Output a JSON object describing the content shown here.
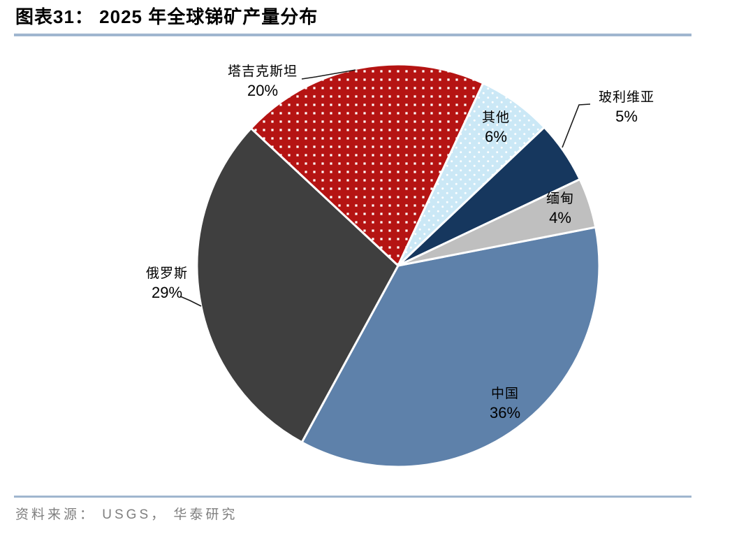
{
  "header": {
    "figure_label": "图表31：",
    "title": "图表31： 2025 年全球锑矿产量分布"
  },
  "footer": {
    "source": "资料来源： USGS， 华泰研究"
  },
  "colors": {
    "rule": "#a0b6cf",
    "source_text": "#7f7f7f",
    "slice_border": "#ffffff",
    "leader_line": "#1a1a1a",
    "pattern_dot": "#ffffff"
  },
  "chart_data": {
    "type": "pie",
    "title": "图表31： 2025 年全球锑矿产量分布",
    "source": "资料来源： USGS， 华泰研究",
    "unit": "%",
    "start_angle_deg": 79,
    "clockwise": true,
    "legend": "none (direct slice labels, some with leader lines)",
    "categories": [
      "中国",
      "俄罗斯",
      "塔吉克斯坦",
      "其他",
      "玻利维亚",
      "缅甸"
    ],
    "values": [
      36,
      29,
      20,
      6,
      5,
      4
    ],
    "slices": [
      {
        "name": "中国",
        "pct": "36%",
        "value": 36,
        "color": "#5e81aa",
        "pattern": "solid"
      },
      {
        "name": "俄罗斯",
        "pct": "29%",
        "value": 29,
        "color": "#3f3f3f",
        "pattern": "solid"
      },
      {
        "name": "塔吉克斯坦",
        "pct": "20%",
        "value": 20,
        "color": "#b51413",
        "pattern": "dots-square"
      },
      {
        "name": "其他",
        "pct": "6%",
        "value": 6,
        "color": "#cbe8f6",
        "pattern": "dots-round"
      },
      {
        "name": "玻利维亚",
        "pct": "5%",
        "value": 5,
        "color": "#16375e",
        "pattern": "solid"
      },
      {
        "name": "缅甸",
        "pct": "4%",
        "value": 4,
        "color": "#bfbfbf",
        "pattern": "solid"
      }
    ]
  }
}
